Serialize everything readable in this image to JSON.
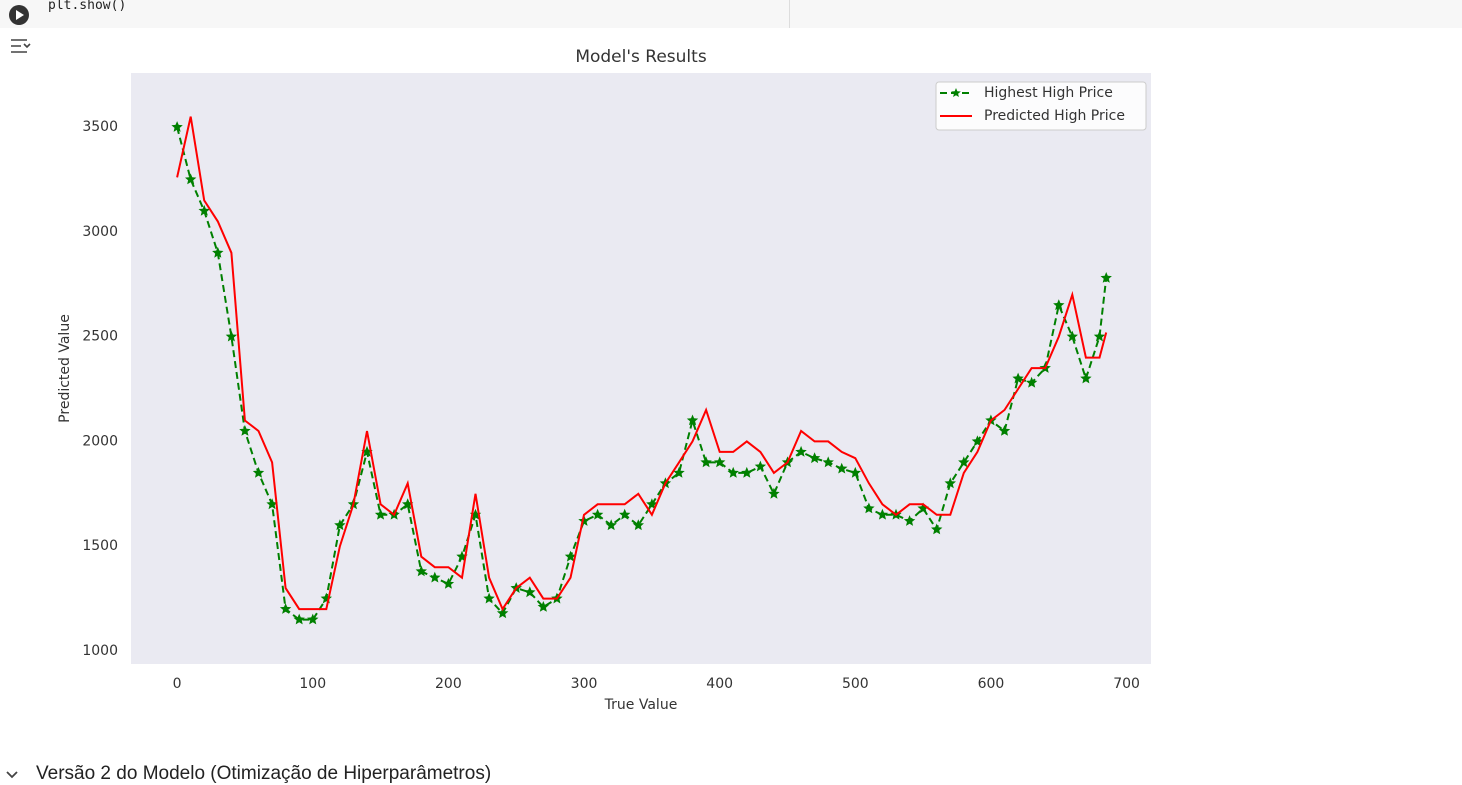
{
  "code": {
    "line": "plt.show()"
  },
  "section": {
    "title": "Versão 2 do Modelo (Otimização de Hiperparâmetros)"
  },
  "chart_data": {
    "type": "line",
    "title": "Model's Results",
    "x_label": "True Value",
    "y_label": "Predicted Value",
    "x": [
      0,
      10,
      20,
      30,
      40,
      50,
      60,
      70,
      80,
      90,
      100,
      110,
      120,
      130,
      140,
      150,
      160,
      170,
      180,
      190,
      200,
      210,
      220,
      230,
      240,
      250,
      260,
      270,
      280,
      290,
      300,
      310,
      320,
      330,
      340,
      350,
      360,
      370,
      380,
      390,
      400,
      410,
      420,
      430,
      440,
      450,
      460,
      470,
      480,
      490,
      500,
      510,
      520,
      530,
      540,
      550,
      560,
      570,
      580,
      590,
      600,
      610,
      620,
      630,
      640,
      650,
      660,
      670,
      680,
      685
    ],
    "series": [
      {
        "name": "Highest High Price",
        "color": "#008000",
        "linestyle": "dashed",
        "marker": "star",
        "values": [
          3500,
          3250,
          3100,
          2900,
          2500,
          2050,
          1850,
          1700,
          1200,
          1150,
          1150,
          1250,
          1600,
          1700,
          1950,
          1650,
          1650,
          1700,
          1380,
          1350,
          1320,
          1450,
          1650,
          1250,
          1180,
          1300,
          1280,
          1210,
          1250,
          1450,
          1620,
          1650,
          1600,
          1650,
          1600,
          1700,
          1800,
          1850,
          2100,
          1900,
          1900,
          1850,
          1850,
          1880,
          1750,
          1900,
          1950,
          1920,
          1900,
          1870,
          1850,
          1680,
          1650,
          1650,
          1620,
          1680,
          1580,
          1800,
          1900,
          2000,
          2100,
          2050,
          2300,
          2280,
          2350,
          2650,
          2500,
          2300,
          2500,
          2780
        ]
      },
      {
        "name": "Predicted High Price",
        "color": "#ff0000",
        "linestyle": "solid",
        "marker": "none",
        "values": [
          3260,
          3550,
          3150,
          3050,
          2900,
          2100,
          2050,
          1900,
          1300,
          1200,
          1200,
          1200,
          1500,
          1700,
          2050,
          1700,
          1650,
          1800,
          1450,
          1400,
          1400,
          1350,
          1750,
          1350,
          1200,
          1300,
          1350,
          1250,
          1250,
          1350,
          1650,
          1700,
          1700,
          1700,
          1750,
          1650,
          1800,
          1900,
          2000,
          2150,
          1950,
          1950,
          2000,
          1950,
          1850,
          1900,
          2050,
          2000,
          2000,
          1950,
          1920,
          1800,
          1700,
          1650,
          1700,
          1700,
          1650,
          1650,
          1850,
          1950,
          2100,
          2150,
          2250,
          2350,
          2350,
          2500,
          2700,
          2400,
          2400,
          2520
        ]
      }
    ],
    "xlim": [
      -34,
      718
    ],
    "ylim": [
      938,
      3758
    ],
    "xticks": [
      0,
      100,
      200,
      300,
      400,
      500,
      600,
      700
    ],
    "yticks": [
      1000,
      1500,
      2000,
      2500,
      3000,
      3500
    ],
    "grid": false,
    "legend": "upper right",
    "background": "#eaeaf2"
  }
}
